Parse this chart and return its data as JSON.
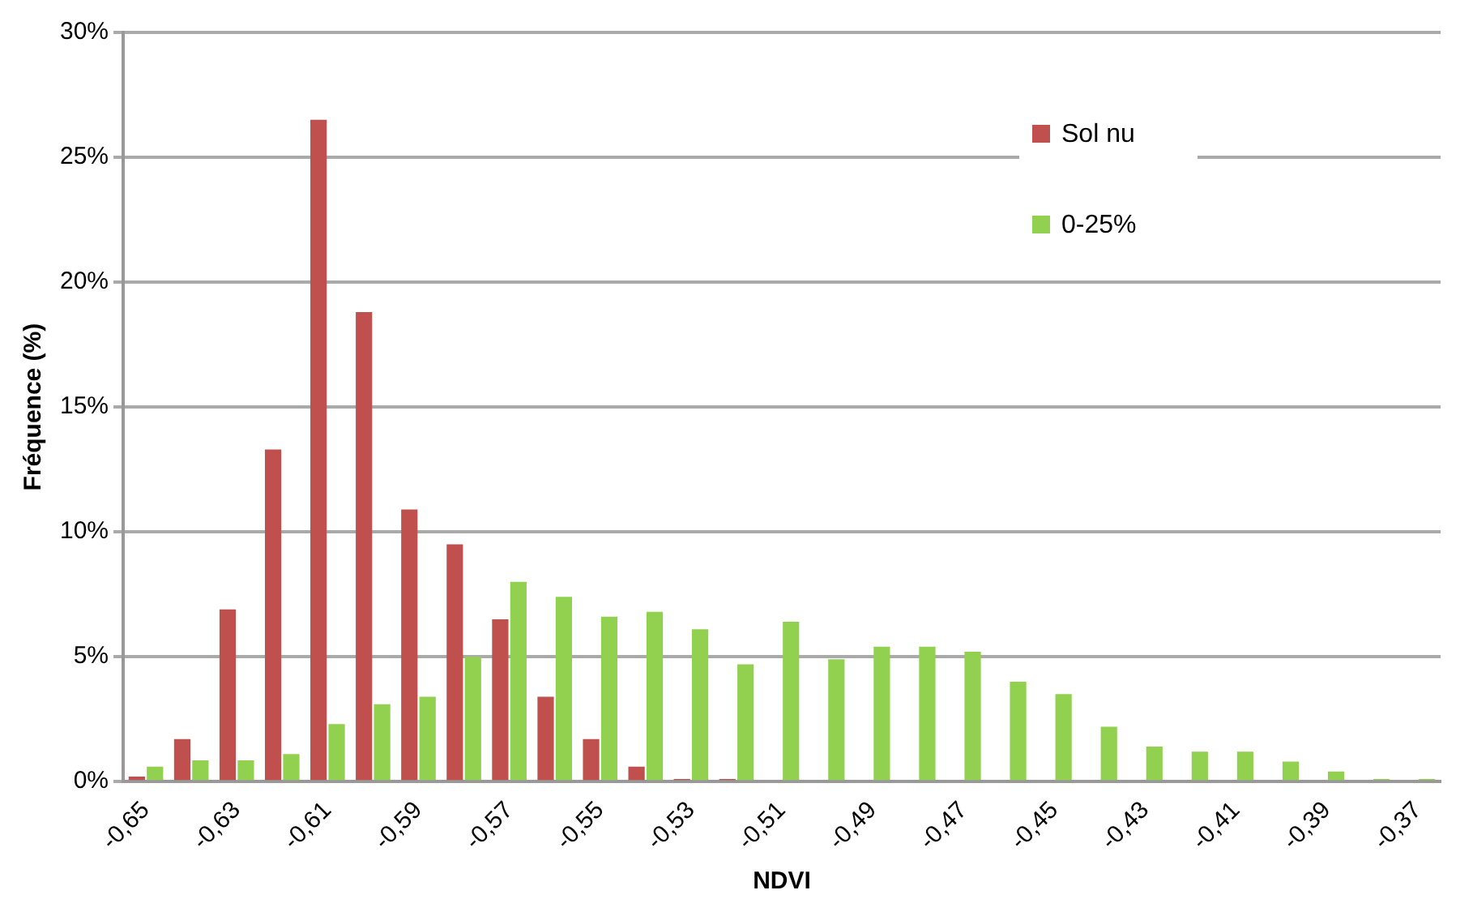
{
  "chart_data": {
    "type": "bar",
    "xlabel": "NDVI",
    "ylabel": "Fréquence (%)",
    "categories": [
      "-0,65",
      null,
      "-0,63",
      null,
      "-0,61",
      null,
      "-0,59",
      null,
      "-0,57",
      null,
      "-0,55",
      null,
      "-0,53",
      null,
      "-0,51",
      null,
      "-0,49",
      null,
      "-0,47",
      null,
      "-0,45",
      null,
      "-0,43",
      null,
      "-0,41",
      null,
      "-0,39",
      null,
      "-0,37"
    ],
    "series": [
      {
        "name": "Sol nu",
        "color": "#c0504d",
        "values": [
          0.2,
          1.7,
          6.9,
          13.3,
          26.5,
          18.8,
          10.9,
          9.5,
          6.5,
          3.4,
          1.7,
          0.6,
          0.1,
          0.1,
          0,
          0,
          0,
          0,
          0,
          0,
          0,
          0,
          0,
          0,
          0,
          0,
          0,
          0,
          0
        ]
      },
      {
        "name": "0-25%",
        "color": "#92d050",
        "values": [
          0.6,
          0.85,
          0.85,
          1.1,
          2.3,
          3.1,
          3.4,
          5.0,
          8.0,
          7.4,
          6.6,
          6.8,
          6.1,
          4.7,
          6.4,
          4.9,
          5.4,
          5.4,
          5.2,
          4.0,
          3.5,
          2.2,
          1.4,
          1.2,
          1.2,
          0.8,
          0.4,
          0.1,
          0.1
        ]
      }
    ],
    "ylim": [
      0,
      30
    ],
    "yticks": [
      {
        "value": 0,
        "label": "0%"
      },
      {
        "value": 5,
        "label": "5%"
      },
      {
        "value": 10,
        "label": "10%"
      },
      {
        "value": 15,
        "label": "15%"
      },
      {
        "value": 20,
        "label": "20%"
      },
      {
        "value": 25,
        "label": "25%"
      },
      {
        "value": 30,
        "label": "30%"
      }
    ],
    "grid": "y",
    "legend": "top right"
  }
}
